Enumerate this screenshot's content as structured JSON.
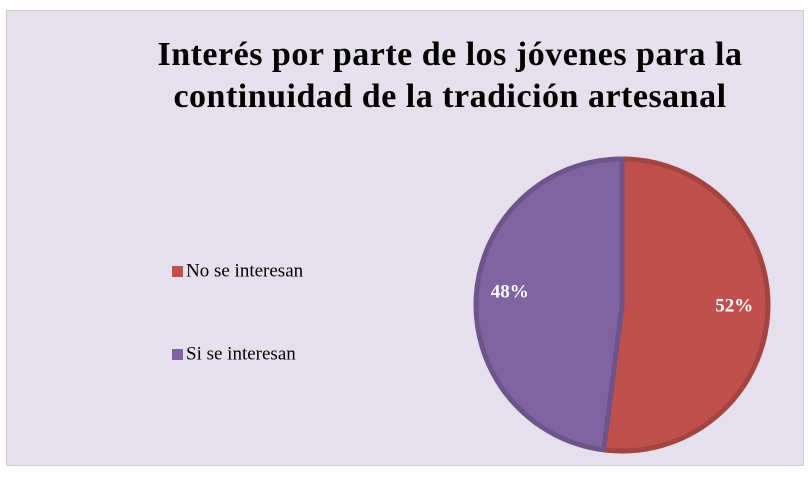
{
  "chart_data": {
    "type": "pie",
    "title": "Interés por parte de los jóvenes para la continuidad de la tradición artesanal",
    "categories": [
      "No se interesan",
      "Si se interesan"
    ],
    "values": [
      52,
      48
    ],
    "value_labels": [
      "52%",
      "48%"
    ],
    "colors": [
      "#c0504d",
      "#8064a2"
    ],
    "legend": "left"
  }
}
